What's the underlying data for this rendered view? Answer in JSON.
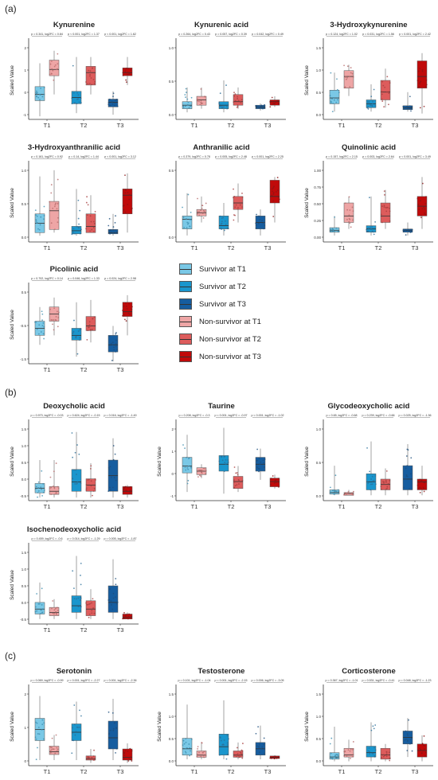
{
  "section_labels": {
    "a": "(a)",
    "b": "(b)",
    "c": "(c)"
  },
  "legend": [
    {
      "label": "Survivor at T1",
      "color": "#7ac8e6"
    },
    {
      "label": "Survivor at T2",
      "color": "#1a96cd"
    },
    {
      "label": "Survivor at T3",
      "color": "#165d9f"
    },
    {
      "label": "Non-survivor at T1",
      "color": "#eea5a5"
    },
    {
      "label": "Non-survivor at T2",
      "color": "#dd5c5c"
    },
    {
      "label": "Non-survivor at T3",
      "color": "#c00a0a"
    }
  ],
  "chart_data": [
    {
      "type": "box",
      "title": "Kynurenine",
      "ylabel": "Scaled Value",
      "categories": [
        "T1",
        "T2",
        "T3"
      ],
      "ylim": [
        -0.5,
        2.0
      ],
      "yticks": [
        "-1",
        "0",
        "1",
        "2"
      ],
      "stats": [
        "p = 0.341, log2FC = 0.84",
        "p < 0.001, log2FC = 1.37",
        "p < 0.001, log2FC = 1.62"
      ],
      "survivor": [
        [
          -0.4,
          0.1,
          0.3,
          0.55,
          1.3
        ],
        [
          -0.3,
          0.0,
          0.2,
          0.4,
          1.5
        ],
        [
          -0.35,
          -0.1,
          0.05,
          0.15,
          0.4
        ]
      ],
      "non_survivor": [
        [
          0.3,
          0.9,
          1.1,
          1.4,
          1.7
        ],
        [
          0.3,
          0.6,
          1.0,
          1.2,
          1.5
        ],
        [
          0.6,
          0.9,
          1.0,
          1.15,
          1.5
        ]
      ]
    },
    {
      "type": "box",
      "title": "Kynurenic acid",
      "ylabel": "",
      "categories": [
        "T1",
        "T2",
        "T3"
      ],
      "ylim": [
        -0.2,
        2.0
      ],
      "yticks": [
        "0.0",
        "0.5",
        "1.0"
      ],
      "stats": [
        "p = 0.264, log2FC = 0.43",
        "p = 0.057, log2FC = 0.39",
        "p = 0.042, log2FC = 0.49"
      ],
      "survivor": [
        [
          0.0,
          0.1,
          0.2,
          0.3,
          0.7
        ],
        [
          0.0,
          0.1,
          0.2,
          0.3,
          0.9
        ],
        [
          0.05,
          0.1,
          0.15,
          0.2,
          0.25
        ]
      ],
      "non_survivor": [
        [
          0.1,
          0.2,
          0.35,
          0.45,
          0.7
        ],
        [
          0.1,
          0.2,
          0.3,
          0.5,
          0.7
        ],
        [
          0.15,
          0.2,
          0.3,
          0.35,
          0.45
        ]
      ]
    },
    {
      "type": "box",
      "title": "3-Hydroxykynurenine",
      "ylabel": "Scaled Value",
      "categories": [
        "T1",
        "T2",
        "T3"
      ],
      "ylim": [
        -0.3,
        1.7
      ],
      "yticks": [
        "0.0",
        "0.5",
        "1.0",
        "1.5"
      ],
      "stats": [
        "p = 0.124, log2FC = 1.02",
        "p = 0.031, log2FC = 1.56",
        "p < 0.001, log2FC = 2.42"
      ],
      "survivor": [
        [
          -0.1,
          0.1,
          0.25,
          0.45,
          0.9
        ],
        [
          -0.1,
          0.0,
          0.1,
          0.2,
          0.6
        ],
        [
          -0.1,
          -0.05,
          0.0,
          0.05,
          0.4
        ]
      ],
      "non_survivor": [
        [
          0.3,
          0.5,
          0.8,
          0.95,
          1.1
        ],
        [
          0.0,
          0.2,
          0.4,
          0.7,
          1.0
        ],
        [
          -0.15,
          0.5,
          0.8,
          1.2,
          1.4
        ]
      ]
    },
    {
      "type": "box",
      "title": "3-Hydroxyanthranilic acid",
      "ylabel": "Scaled Value",
      "categories": [
        "T1",
        "T2",
        "T3"
      ],
      "ylim": [
        -0.15,
        1.1
      ],
      "yticks": [
        "0.0",
        "0.5",
        "1.0"
      ],
      "stats": [
        "p = 0.161, log2FC = 0.92",
        "p = 0.14, log2FC = 1.44",
        "p < 0.001, log2FC = 3.12"
      ],
      "survivor": [
        [
          -0.05,
          0.0,
          0.15,
          0.3,
          0.9
        ],
        [
          -0.05,
          -0.02,
          0.03,
          0.1,
          0.7
        ],
        [
          -0.05,
          -0.02,
          0.0,
          0.05,
          0.3
        ]
      ],
      "non_survivor": [
        [
          0.0,
          0.05,
          0.35,
          0.5,
          1.0
        ],
        [
          0.0,
          0.0,
          0.1,
          0.3,
          0.6
        ],
        [
          0.0,
          0.3,
          0.6,
          0.7,
          0.95
        ]
      ]
    },
    {
      "type": "box",
      "title": "Anthranilic acid",
      "ylabel": "",
      "categories": [
        "T1",
        "T2",
        "T3"
      ],
      "ylim": [
        -0.2,
        1.0
      ],
      "yticks": [
        "0.0",
        "0.5"
      ],
      "stats": [
        "p = 0.379, log2FC = 0.78",
        "p = 0.005, log2FC = 2.48",
        "p < 0.001, log2FC = 2.25"
      ],
      "survivor": [
        [
          -0.1,
          0.0,
          0.15,
          0.2,
          0.55
        ],
        [
          -0.1,
          0.0,
          0.05,
          0.2,
          0.4
        ],
        [
          -0.1,
          0.0,
          0.1,
          0.2,
          0.3
        ]
      ],
      "non_survivor": [
        [
          0.1,
          0.2,
          0.25,
          0.3,
          0.5
        ],
        [
          0.1,
          0.3,
          0.4,
          0.5,
          0.7
        ],
        [
          0.1,
          0.4,
          0.5,
          0.75,
          0.8
        ]
      ]
    },
    {
      "type": "box",
      "title": "Quinolinic acid",
      "ylabel": "Scaled Value",
      "categories": [
        "T1",
        "T2",
        "T3"
      ],
      "ylim": [
        -0.1,
        1.1
      ],
      "yticks": [
        "0.00",
        "0.25",
        "0.50",
        "0.75",
        "1.00"
      ],
      "stats": [
        "p = 0.157, log2FC = 2.15",
        "p = 0.003, log2FC = 2.64",
        "p < 0.001, log2FC = 3.49"
      ],
      "survivor": [
        [
          0.0,
          0.05,
          0.08,
          0.12,
          0.3
        ],
        [
          0.0,
          0.05,
          0.1,
          0.15,
          0.6
        ],
        [
          0.0,
          0.05,
          0.08,
          0.1,
          0.2
        ]
      ],
      "non_survivor": [
        [
          0.1,
          0.2,
          0.3,
          0.5,
          0.6
        ],
        [
          0.1,
          0.2,
          0.3,
          0.5,
          0.7
        ],
        [
          0.1,
          0.3,
          0.45,
          0.6,
          0.9
        ]
      ]
    },
    {
      "type": "box",
      "title": "Picolinic acid",
      "ylabel": "Scaled Value",
      "categories": [
        "T1",
        "T2",
        "T3"
      ],
      "ylim": [
        -1.8,
        1.5
      ],
      "yticks": [
        "-1.5",
        "-0.5",
        "0.5"
      ],
      "stats": [
        "p = 0.702, log2FC = 0.14",
        "p = 0.046, log2FC = 1.33",
        "p = 0.024, log2FC = 2.98"
      ],
      "survivor": [
        [
          -1.0,
          -0.6,
          -0.3,
          0.0,
          0.6
        ],
        [
          -1.5,
          -0.8,
          -0.6,
          -0.3,
          0.8
        ],
        [
          -1.7,
          -1.3,
          -1.0,
          -0.6,
          -0.2
        ]
      ],
      "non_survivor": [
        [
          -0.6,
          0.0,
          0.3,
          0.6,
          1.0
        ],
        [
          -0.9,
          -0.4,
          -0.2,
          0.2,
          0.9
        ],
        [
          -0.6,
          0.2,
          0.4,
          0.8,
          1.1
        ]
      ]
    },
    {
      "type": "box",
      "title": "Deoxycholic acid",
      "ylabel": "Scaled Value",
      "categories": [
        "T1",
        "T2",
        "T3"
      ],
      "ylim": [
        -0.8,
        1.7
      ],
      "yticks": [
        "-0.5",
        "0.0",
        "0.5",
        "1.0",
        "1.5"
      ],
      "stats": [
        "p = 0.973, log2FC = -0.03",
        "p = 0.624, log2FC = -0.15",
        "p = 0.016, log2FC = -1.49"
      ],
      "survivor": [
        [
          -0.7,
          -0.55,
          -0.4,
          -0.25,
          0.5
        ],
        [
          -0.7,
          -0.5,
          -0.2,
          0.2,
          1.4
        ],
        [
          -0.7,
          -0.5,
          0.0,
          0.5,
          1.2
        ]
      ],
      "non_survivor": [
        [
          -0.7,
          -0.6,
          -0.5,
          -0.35,
          0.5
        ],
        [
          -0.7,
          -0.5,
          -0.3,
          -0.1,
          0.4
        ],
        [
          -0.7,
          -0.6,
          -0.5,
          -0.35,
          -0.3
        ]
      ]
    },
    {
      "type": "box",
      "title": "Taurine",
      "ylabel": "Scaled Value",
      "categories": [
        "T1",
        "T2",
        "T3"
      ],
      "ylim": [
        -2.0,
        2.5
      ],
      "yticks": [
        "-1",
        "0",
        "1",
        "2"
      ],
      "stats": [
        "p = 0.208, log2FC = -0.3",
        "p < 0.001, log2FC = -0.97",
        "p < 0.001, log2FC = -1.02"
      ],
      "survivor": [
        [
          -1.5,
          -0.4,
          0.0,
          0.5,
          1.8
        ],
        [
          -1.6,
          -0.3,
          0.1,
          0.6,
          2.2
        ],
        [
          -0.8,
          -0.3,
          0.1,
          0.5,
          1.0
        ]
      ],
      "non_survivor": [
        [
          -0.7,
          -0.5,
          -0.3,
          -0.1,
          0.1
        ],
        [
          -1.5,
          -1.3,
          -0.9,
          -0.6,
          0.0
        ],
        [
          -1.3,
          -1.2,
          -0.9,
          -0.7,
          -0.5
        ]
      ]
    },
    {
      "type": "box",
      "title": "Glycodeoxycholic acid",
      "ylabel": "Scaled Value",
      "categories": [
        "T1",
        "T2",
        "T3"
      ],
      "ylim": [
        -0.1,
        1.35
      ],
      "yticks": [
        "0.0",
        "0.5",
        "1.0"
      ],
      "stats": [
        "p = 0.65, log2FC = -0.68",
        "p = 0.239, log2FC = -0.66",
        "p = 0.025, log2FC = -1.36"
      ],
      "survivor": [
        [
          0.0,
          0.02,
          0.05,
          0.1,
          0.55
        ],
        [
          0.0,
          0.1,
          0.25,
          0.4,
          1.0
        ],
        [
          0.0,
          0.1,
          0.3,
          0.55,
          0.95
        ]
      ],
      "non_survivor": [
        [
          0.0,
          0.0,
          0.03,
          0.05,
          0.1
        ],
        [
          0.0,
          0.1,
          0.2,
          0.3,
          0.5
        ],
        [
          0.0,
          0.1,
          0.25,
          0.3,
          0.55
        ]
      ]
    },
    {
      "type": "box",
      "title": "Isochenodeoxycholic acid",
      "ylabel": "Scaled Value",
      "categories": [
        "T1",
        "T2",
        "T3"
      ],
      "ylim": [
        -0.75,
        1.6
      ],
      "yticks": [
        "-0.5",
        "0.0",
        "0.5",
        "1.0",
        "1.5"
      ],
      "stats": [
        "p = 0.459, log2FC = -0.6",
        "p = 0.014, log2FC = -1.29",
        "p = 0.005, log2FC = -1.87"
      ],
      "survivor": [
        [
          -0.6,
          -0.45,
          -0.3,
          -0.1,
          0.5
        ],
        [
          -0.6,
          -0.4,
          -0.2,
          0.1,
          1.3
        ],
        [
          -0.6,
          -0.4,
          -0.1,
          0.4,
          1.2
        ]
      ],
      "non_survivor": [
        [
          -0.6,
          -0.5,
          -0.4,
          -0.25,
          0.0
        ],
        [
          -0.6,
          -0.5,
          -0.3,
          -0.05,
          0.3
        ],
        [
          -0.6,
          -0.6,
          -0.55,
          -0.45,
          -0.4
        ]
      ]
    },
    {
      "type": "box",
      "title": "Serotonin",
      "ylabel": "Scaled Value",
      "categories": [
        "T1",
        "T2",
        "T3"
      ],
      "ylim": [
        -0.6,
        2.2
      ],
      "yticks": [
        "0",
        "1",
        "2"
      ],
      "stats": [
        "p = 0.069, log2FC = -0.99",
        "p < 0.001, log2FC = -2.27",
        "p < 0.001, log2FC = -2.36"
      ],
      "survivor": [
        [
          -0.4,
          0.3,
          0.7,
          1.1,
          1.9
        ],
        [
          -0.4,
          0.3,
          0.6,
          0.9,
          1.7
        ],
        [
          -0.4,
          0.0,
          0.4,
          1.0,
          1.8
        ]
      ],
      "non_survivor": [
        [
          -0.4,
          -0.2,
          -0.1,
          0.1,
          0.5
        ],
        [
          -0.5,
          -0.4,
          -0.35,
          -0.25,
          0.0
        ],
        [
          -0.5,
          -0.4,
          -0.3,
          0.0,
          0.2
        ]
      ]
    },
    {
      "type": "box",
      "title": "Testosterone",
      "ylabel": "Scaled Value",
      "categories": [
        "T1",
        "T2",
        "T3"
      ],
      "ylim": [
        -0.15,
        1.7
      ],
      "yticks": [
        "0.0",
        "0.5",
        "1.0",
        "1.5"
      ],
      "stats": [
        "p = 0.101, log2FC = -1.04",
        "p < 0.001, log2FC = -2.15",
        "p = 0.006, log2FC = -3.05"
      ],
      "survivor": [
        [
          0.0,
          0.1,
          0.25,
          0.5,
          1.3
        ],
        [
          0.0,
          0.1,
          0.3,
          0.6,
          1.4
        ],
        [
          0.0,
          0.1,
          0.25,
          0.4,
          0.8
        ]
      ],
      "non_survivor": [
        [
          0.0,
          0.05,
          0.1,
          0.2,
          0.4
        ],
        [
          0.0,
          0.05,
          0.1,
          0.2,
          0.4
        ],
        [
          0.0,
          0.02,
          0.05,
          0.08,
          0.1
        ]
      ]
    },
    {
      "type": "box",
      "title": "Corticosterone",
      "ylabel": "Scaled Value",
      "categories": [
        "T1",
        "T2",
        "T3"
      ],
      "ylim": [
        -0.1,
        1.7
      ],
      "yticks": [
        "0.0",
        "0.5",
        "1.0",
        "1.5"
      ],
      "stats": [
        "p = 0.367, log2FC = -1.01",
        "p = 0.531, log2FC = -0.41",
        "p = 0.048, log2FC = -1.23"
      ],
      "survivor": [
        [
          0.0,
          0.05,
          0.1,
          0.2,
          0.8
        ],
        [
          0.0,
          0.1,
          0.2,
          0.35,
          0.9
        ],
        [
          0.1,
          0.4,
          0.55,
          0.7,
          1.0
        ]
      ],
      "non_survivor": [
        [
          0.0,
          0.1,
          0.15,
          0.3,
          0.5
        ],
        [
          0.0,
          0.05,
          0.15,
          0.3,
          0.4
        ],
        [
          0.0,
          0.1,
          0.25,
          0.4,
          0.6
        ]
      ]
    }
  ]
}
